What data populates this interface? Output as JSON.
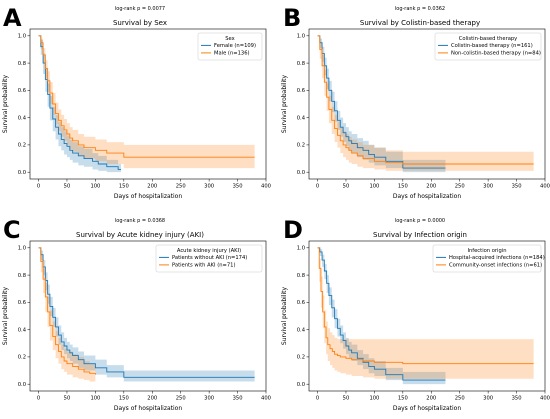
{
  "colors": {
    "series_1": "#1f77b4",
    "series_2": "#ff7f0e",
    "axes": "#000000"
  },
  "chart_data": [
    {
      "panel_label": "A",
      "type": "line",
      "subtitle": "log-rank p = 0.0077",
      "title": "Survival by Sex",
      "xlabel": "Days of hospitalization",
      "ylabel": "Survival probability",
      "xlim": [
        -15,
        400
      ],
      "ylim": [
        -0.05,
        1.05
      ],
      "xticks": [
        0,
        50,
        100,
        150,
        200,
        250,
        300,
        350,
        400
      ],
      "yticks": [
        0.0,
        0.2,
        0.4,
        0.6,
        0.8,
        1.0
      ],
      "grid": false,
      "legend": {
        "title": "Sex",
        "position": "top-right"
      },
      "series": [
        {
          "name": "Female (n=109)",
          "color": "#1f77b4",
          "x": [
            0,
            4,
            8,
            12,
            16,
            20,
            25,
            30,
            35,
            40,
            45,
            50,
            55,
            60,
            70,
            80,
            95,
            105,
            120,
            140,
            145
          ],
          "y": [
            1.0,
            0.92,
            0.8,
            0.68,
            0.57,
            0.47,
            0.39,
            0.33,
            0.28,
            0.24,
            0.21,
            0.19,
            0.16,
            0.14,
            0.12,
            0.1,
            0.08,
            0.06,
            0.04,
            0.02,
            0.02
          ],
          "ci_lower": [
            1.0,
            0.86,
            0.72,
            0.59,
            0.48,
            0.38,
            0.3,
            0.24,
            0.19,
            0.16,
            0.13,
            0.11,
            0.09,
            0.07,
            0.05,
            0.04,
            0.02,
            0.01,
            0.0,
            0.0,
            0.0
          ],
          "ci_upper": [
            1.0,
            0.97,
            0.87,
            0.76,
            0.65,
            0.56,
            0.48,
            0.42,
            0.37,
            0.33,
            0.3,
            0.27,
            0.24,
            0.22,
            0.19,
            0.17,
            0.14,
            0.12,
            0.09,
            0.06,
            0.06
          ]
        },
        {
          "name": "Male (n=136)",
          "color": "#ff7f0e",
          "x": [
            0,
            4,
            8,
            12,
            16,
            20,
            25,
            30,
            35,
            40,
            45,
            50,
            55,
            60,
            70,
            80,
            100,
            120,
            150,
            380
          ],
          "y": [
            1.0,
            0.95,
            0.86,
            0.76,
            0.67,
            0.58,
            0.5,
            0.43,
            0.38,
            0.34,
            0.31,
            0.28,
            0.25,
            0.23,
            0.2,
            0.18,
            0.16,
            0.14,
            0.11,
            0.11
          ],
          "ci_lower": [
            1.0,
            0.9,
            0.8,
            0.69,
            0.59,
            0.5,
            0.42,
            0.35,
            0.3,
            0.26,
            0.23,
            0.2,
            0.17,
            0.15,
            0.12,
            0.1,
            0.08,
            0.06,
            0.03,
            0.03
          ],
          "ci_upper": [
            1.0,
            0.98,
            0.91,
            0.82,
            0.74,
            0.66,
            0.58,
            0.51,
            0.46,
            0.42,
            0.39,
            0.36,
            0.33,
            0.31,
            0.28,
            0.26,
            0.24,
            0.22,
            0.2,
            0.2
          ]
        }
      ]
    },
    {
      "panel_label": "B",
      "type": "line",
      "subtitle": "log-rank p = 0.0362",
      "title": "Survival by Colistin-based therapy",
      "xlabel": "Days of hospitalization",
      "ylabel": "Survival probability",
      "xlim": [
        -15,
        400
      ],
      "ylim": [
        -0.05,
        1.05
      ],
      "xticks": [
        0,
        50,
        100,
        150,
        200,
        250,
        300,
        350,
        400
      ],
      "yticks": [
        0.0,
        0.2,
        0.4,
        0.6,
        0.8,
        1.0
      ],
      "grid": false,
      "legend": {
        "title": "Colistin-based therapy",
        "position": "top-right"
      },
      "series": [
        {
          "name": "Colistin-based therapy (n=161)",
          "color": "#1f77b4",
          "x": [
            0,
            4,
            8,
            12,
            16,
            20,
            25,
            30,
            35,
            40,
            45,
            50,
            55,
            60,
            70,
            80,
            90,
            100,
            120,
            150,
            225
          ],
          "y": [
            1.0,
            0.95,
            0.87,
            0.78,
            0.69,
            0.6,
            0.52,
            0.45,
            0.38,
            0.33,
            0.29,
            0.26,
            0.23,
            0.21,
            0.18,
            0.16,
            0.13,
            0.11,
            0.08,
            0.03,
            0.03
          ],
          "ci_lower": [
            1.0,
            0.91,
            0.81,
            0.71,
            0.61,
            0.52,
            0.44,
            0.37,
            0.31,
            0.26,
            0.22,
            0.19,
            0.16,
            0.14,
            0.11,
            0.09,
            0.07,
            0.05,
            0.03,
            0.0,
            0.0
          ],
          "ci_upper": [
            1.0,
            0.98,
            0.92,
            0.84,
            0.76,
            0.67,
            0.59,
            0.52,
            0.45,
            0.4,
            0.36,
            0.33,
            0.3,
            0.28,
            0.25,
            0.23,
            0.2,
            0.18,
            0.15,
            0.09,
            0.09
          ]
        },
        {
          "name": "Non-colistin-based therapy (n=84)",
          "color": "#ff7f0e",
          "x": [
            0,
            4,
            8,
            12,
            16,
            20,
            25,
            30,
            35,
            40,
            45,
            50,
            55,
            60,
            70,
            80,
            100,
            120,
            150,
            380
          ],
          "y": [
            1.0,
            0.9,
            0.78,
            0.66,
            0.55,
            0.46,
            0.38,
            0.32,
            0.27,
            0.23,
            0.2,
            0.18,
            0.16,
            0.14,
            0.12,
            0.1,
            0.08,
            0.07,
            0.06,
            0.06
          ],
          "ci_lower": [
            1.0,
            0.83,
            0.69,
            0.56,
            0.45,
            0.36,
            0.28,
            0.22,
            0.18,
            0.14,
            0.11,
            0.09,
            0.07,
            0.06,
            0.04,
            0.03,
            0.02,
            0.01,
            0.01,
            0.01
          ],
          "ci_upper": [
            1.0,
            0.95,
            0.86,
            0.75,
            0.65,
            0.56,
            0.48,
            0.42,
            0.37,
            0.33,
            0.3,
            0.28,
            0.26,
            0.24,
            0.22,
            0.2,
            0.18,
            0.16,
            0.15,
            0.15
          ]
        }
      ]
    },
    {
      "panel_label": "C",
      "type": "line",
      "subtitle": "log-rank p = 0.0368",
      "title": "Survival by Acute kidney injury (AKI)",
      "xlabel": "Days of hospitalization",
      "ylabel": "Survival probability",
      "xlim": [
        -15,
        400
      ],
      "ylim": [
        -0.05,
        1.05
      ],
      "xticks": [
        0,
        50,
        100,
        150,
        200,
        250,
        300,
        350,
        400
      ],
      "yticks": [
        0.0,
        0.2,
        0.4,
        0.6,
        0.8,
        1.0
      ],
      "grid": false,
      "legend": {
        "title": "Acute kidney injury (AKI)",
        "position": "top-right"
      },
      "series": [
        {
          "name": "Patients without AKI (n=174)",
          "color": "#1f77b4",
          "x": [
            0,
            4,
            8,
            12,
            16,
            20,
            25,
            30,
            35,
            40,
            45,
            50,
            55,
            60,
            70,
            80,
            100,
            120,
            150,
            380
          ],
          "y": [
            1.0,
            0.95,
            0.86,
            0.76,
            0.66,
            0.57,
            0.49,
            0.42,
            0.36,
            0.31,
            0.28,
            0.25,
            0.23,
            0.21,
            0.18,
            0.15,
            0.12,
            0.09,
            0.05,
            0.05
          ],
          "ci_lower": [
            1.0,
            0.91,
            0.8,
            0.69,
            0.59,
            0.5,
            0.42,
            0.35,
            0.29,
            0.25,
            0.22,
            0.19,
            0.17,
            0.15,
            0.12,
            0.1,
            0.07,
            0.05,
            0.02,
            0.02
          ],
          "ci_upper": [
            1.0,
            0.98,
            0.91,
            0.82,
            0.73,
            0.64,
            0.56,
            0.49,
            0.43,
            0.38,
            0.34,
            0.31,
            0.29,
            0.27,
            0.24,
            0.21,
            0.18,
            0.14,
            0.1,
            0.1
          ]
        },
        {
          "name": "Patients with AKI (n=71)",
          "color": "#ff7f0e",
          "x": [
            0,
            4,
            8,
            12,
            16,
            20,
            25,
            30,
            35,
            40,
            45,
            50,
            60,
            70,
            80,
            90,
            100
          ],
          "y": [
            1.0,
            0.9,
            0.77,
            0.64,
            0.53,
            0.43,
            0.35,
            0.29,
            0.24,
            0.2,
            0.17,
            0.15,
            0.13,
            0.11,
            0.09,
            0.08,
            0.07
          ],
          "ci_lower": [
            1.0,
            0.82,
            0.67,
            0.53,
            0.42,
            0.32,
            0.25,
            0.19,
            0.15,
            0.11,
            0.09,
            0.07,
            0.05,
            0.04,
            0.03,
            0.02,
            0.02
          ],
          "ci_upper": [
            1.0,
            0.95,
            0.85,
            0.74,
            0.64,
            0.54,
            0.46,
            0.39,
            0.34,
            0.29,
            0.26,
            0.24,
            0.22,
            0.2,
            0.17,
            0.15,
            0.14
          ]
        }
      ]
    },
    {
      "panel_label": "D",
      "type": "line",
      "subtitle": "log-rank p = 0.0000",
      "title": "Survival by Infection origin",
      "xlabel": "Days of hospitalization",
      "ylabel": "Survival probability",
      "xlim": [
        -15,
        400
      ],
      "ylim": [
        -0.05,
        1.05
      ],
      "xticks": [
        0,
        50,
        100,
        150,
        200,
        250,
        300,
        350,
        400
      ],
      "yticks": [
        0.0,
        0.2,
        0.4,
        0.6,
        0.8,
        1.0
      ],
      "grid": false,
      "legend": {
        "title": "Infection origin",
        "position": "top-right"
      },
      "series": [
        {
          "name": "Hospital-acquired infections (n=184)",
          "color": "#1f77b4",
          "x": [
            0,
            4,
            8,
            12,
            16,
            20,
            25,
            30,
            35,
            40,
            45,
            50,
            55,
            60,
            70,
            80,
            90,
            100,
            120,
            150,
            225
          ],
          "y": [
            1.0,
            0.97,
            0.91,
            0.83,
            0.74,
            0.65,
            0.56,
            0.48,
            0.41,
            0.36,
            0.32,
            0.28,
            0.25,
            0.23,
            0.19,
            0.16,
            0.13,
            0.11,
            0.07,
            0.03,
            0.03
          ],
          "ci_lower": [
            1.0,
            0.94,
            0.86,
            0.77,
            0.67,
            0.58,
            0.49,
            0.41,
            0.35,
            0.3,
            0.26,
            0.22,
            0.19,
            0.17,
            0.14,
            0.11,
            0.08,
            0.06,
            0.03,
            0.0,
            0.0
          ],
          "ci_upper": [
            1.0,
            0.99,
            0.95,
            0.88,
            0.8,
            0.71,
            0.62,
            0.55,
            0.48,
            0.43,
            0.38,
            0.34,
            0.31,
            0.29,
            0.25,
            0.22,
            0.19,
            0.17,
            0.12,
            0.09,
            0.09
          ]
        },
        {
          "name": "Community-onset infections (n=61)",
          "color": "#ff7f0e",
          "x": [
            0,
            3,
            6,
            9,
            12,
            15,
            18,
            22,
            26,
            30,
            35,
            40,
            50,
            60,
            80,
            100,
            150,
            380
          ],
          "y": [
            1.0,
            0.85,
            0.68,
            0.53,
            0.42,
            0.34,
            0.29,
            0.26,
            0.24,
            0.22,
            0.21,
            0.2,
            0.19,
            0.18,
            0.17,
            0.16,
            0.15,
            0.15
          ],
          "ci_lower": [
            1.0,
            0.75,
            0.56,
            0.41,
            0.3,
            0.22,
            0.17,
            0.14,
            0.12,
            0.1,
            0.09,
            0.08,
            0.07,
            0.06,
            0.05,
            0.04,
            0.04,
            0.04
          ],
          "ci_upper": [
            1.0,
            0.92,
            0.79,
            0.65,
            0.54,
            0.46,
            0.41,
            0.38,
            0.36,
            0.34,
            0.33,
            0.33,
            0.33,
            0.33,
            0.33,
            0.33,
            0.33,
            0.33
          ]
        }
      ]
    }
  ]
}
